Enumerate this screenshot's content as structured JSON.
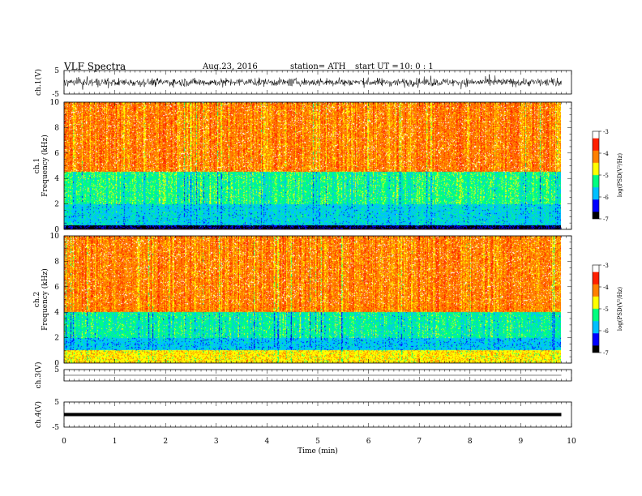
{
  "header": {
    "title": "VLF  Spectra",
    "date": "Aug.23, 2016",
    "station": "station= ATH",
    "start_label": "start  UT  =",
    "start_value": "10: 0  : 1"
  },
  "colorbar": {
    "label": "log(PSD(V²/Hz)",
    "ticks": [
      "-3",
      "-4",
      "-5",
      "-6",
      "-7"
    ],
    "colors": [
      "#000000",
      "#0000ff",
      "#00c0ff",
      "#00ff80",
      "#ffff00",
      "#ff8000",
      "#ff2000",
      "#ffffff"
    ]
  },
  "chart_data": [
    {
      "type": "line",
      "ylabel": "ch.1(V)",
      "ylim": [
        -5,
        5
      ],
      "y_ticks": [
        "5",
        "-5"
      ],
      "trace": "noisy signal, approx. -3 to 3 V",
      "xlim": [
        0,
        10
      ]
    },
    {
      "type": "heatmap",
      "ylabel": "ch.1\nFrequency (kHz)",
      "ylim": [
        0,
        10
      ],
      "y_ticks": [
        "0",
        "2",
        "4",
        "6",
        "8",
        "10"
      ],
      "xlim": [
        0,
        10
      ],
      "data_extent_x": [
        0,
        9.8
      ],
      "zlim": [
        -7,
        -3
      ],
      "band_levels": [
        {
          "f": [
            0,
            0.3
          ],
          "level": -6.8
        },
        {
          "f": [
            0.3,
            2
          ],
          "level": -5.7
        },
        {
          "f": [
            2,
            4.5
          ],
          "level": -5.3
        },
        {
          "f": [
            4.5,
            10
          ],
          "level": -4.1
        }
      ]
    },
    {
      "type": "heatmap",
      "ylabel": "ch.2\nFrequency (kHz)",
      "ylim": [
        0,
        10
      ],
      "y_ticks": [
        "0",
        "2",
        "4",
        "6",
        "8",
        "10"
      ],
      "xlim": [
        0,
        10
      ],
      "data_extent_x": [
        0,
        9.8
      ],
      "zlim": [
        -7,
        -3
      ],
      "band_levels": [
        {
          "f": [
            0,
            1
          ],
          "level": -4.6
        },
        {
          "f": [
            1,
            2
          ],
          "level": -5.8
        },
        {
          "f": [
            2,
            4
          ],
          "level": -5.4
        },
        {
          "f": [
            4,
            10
          ],
          "level": -4.1
        }
      ]
    },
    {
      "type": "line",
      "ylabel": "ch.3(V)",
      "ylim": [
        -5,
        5
      ],
      "y_ticks": [
        "5"
      ],
      "trace": "flat near 0 V",
      "xlim": [
        0,
        10
      ]
    },
    {
      "type": "line",
      "ylabel": "ch.4(V)",
      "ylim": [
        -5,
        5
      ],
      "y_ticks": [
        "5",
        "-5"
      ],
      "trace": "thick flat line near 0 V",
      "xlim": [
        0,
        10
      ]
    }
  ],
  "x_axis": {
    "label": "Time  (min)",
    "ticks": [
      "0",
      "1",
      "2",
      "3",
      "4",
      "5",
      "6",
      "7",
      "8",
      "9",
      "10"
    ]
  }
}
